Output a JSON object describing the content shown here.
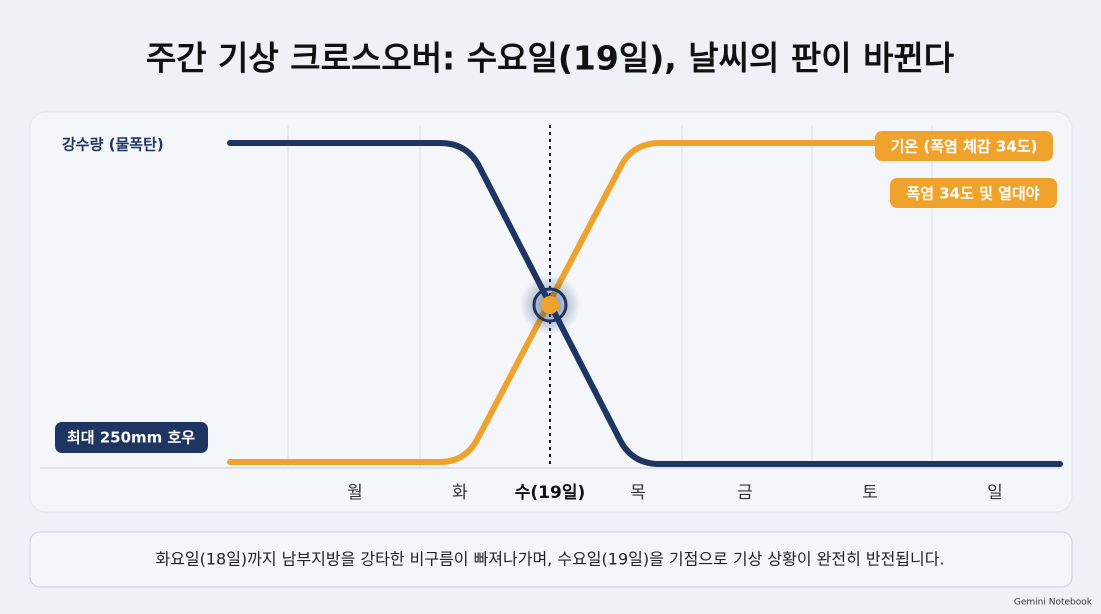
{
  "title": "주간 기상 크로스오버: 수요일(19일), 날씨의 판이 바뀐다",
  "labels": {
    "rain": "강수량 (물폭탄)",
    "rain_badge": "최대 250mm 호우",
    "temp_badge": "기온 (폭염 체감 34도)",
    "heat_badge": "폭염 34도 및 열대야"
  },
  "days": [
    "월",
    "화",
    "수(19일)",
    "목",
    "금",
    "토",
    "일"
  ],
  "caption": "화요일(18일)까지 남부지방을 강타한 비구름이 빠져나가며, 수요일(19일)을 기점으로 기상 상황이 완전히 반전됩니다.",
  "brand": "Gemini Notebook"
}
